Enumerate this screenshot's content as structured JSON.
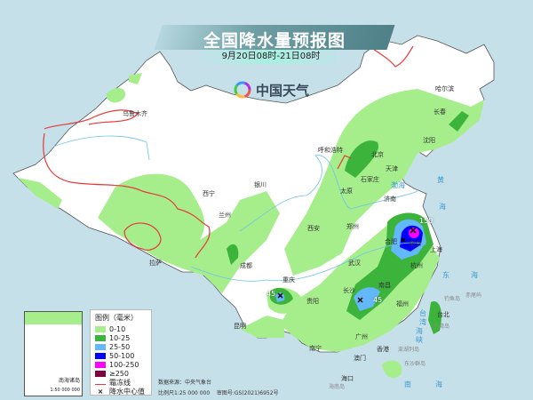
{
  "header": {
    "title": "全国降水量预报图",
    "subtitle": "9月20日08时-21日08时",
    "logo_text": "中国天气"
  },
  "cities": [
    "乌鲁木齐",
    "拉萨",
    "西宁",
    "兰州",
    "银川",
    "成都",
    "重庆",
    "贵阳",
    "昆明",
    "南宁",
    "海口",
    "广州",
    "香港",
    "澳门",
    "长沙",
    "南昌",
    "武汉",
    "福州",
    "台北",
    "杭州",
    "上海",
    "南京",
    "合肥",
    "郑州",
    "济南",
    "石家庄",
    "太原",
    "北京",
    "天津",
    "呼和浩特",
    "西安",
    "沈阳",
    "长春",
    "哈尔滨"
  ],
  "seas": [
    "渤海",
    "黄",
    "海",
    "东",
    "海",
    "南",
    "海",
    "台",
    "湾",
    "海",
    "峡"
  ],
  "islands": [
    "钓鱼岛",
    "赤尾屿",
    "台湾岛",
    "澎湖列岛",
    "东沙群岛",
    "海南岛"
  ],
  "rain_centers": [
    "150",
    "45",
    "45"
  ],
  "legend": {
    "title": "图例（毫米）",
    "items": [
      {
        "label": "0-10",
        "color": "#a6ee8c"
      },
      {
        "label": "10-25",
        "color": "#3cb43c"
      },
      {
        "label": "25-50",
        "color": "#62b8f8"
      },
      {
        "label": "50-100",
        "color": "#0000fe"
      },
      {
        "label": "100-250",
        "color": "#fe00fe"
      },
      {
        "label": "≥250",
        "color": "#800040"
      }
    ],
    "frost_line": "霜冻线",
    "center": "降水中心值"
  },
  "inset": {
    "caption": "南海诸岛",
    "scale": "1:50 000 000"
  },
  "footer": {
    "source": "数据来源：中央气象台",
    "scale": "比例尺1:25 000 000",
    "approval": "审图号:GS(2021)6952号"
  }
}
